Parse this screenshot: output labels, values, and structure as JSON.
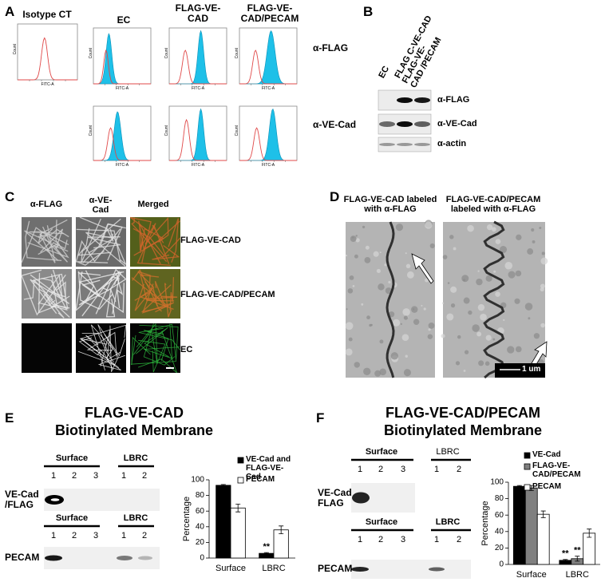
{
  "panel_a": {
    "letter": "A",
    "columns": [
      "Isotype CT",
      "EC",
      "FLAG-VE-CAD",
      "FLAG-VE-CAD/PECAM"
    ],
    "rows": [
      "α-FLAG",
      "α-VE-Cad"
    ],
    "y_axis": "Count",
    "x_axis": "FITC-A"
  },
  "panel_b": {
    "letter": "B",
    "lanes": [
      "EC",
      "FLAG C-VE-CAD",
      "FLAG-VE-CAD /PECAM"
    ],
    "rows": [
      "α-FLAG",
      "α-VE-Cad",
      "α-actin"
    ]
  },
  "panel_c": {
    "letter": "C",
    "columns": [
      "α-FLAG",
      "α-VE-Cad",
      "Merged"
    ],
    "rows": [
      "FLAG-VE-CAD",
      "FLAG-VE-CAD/PECAM",
      "EC"
    ]
  },
  "panel_d": {
    "letter": "D",
    "captions": [
      "FLAG-VE-CAD labeled with α-FLAG",
      "FLAG-VE-CAD/PECAM labeled with α-FLAG"
    ],
    "scale_bar": "1 um"
  },
  "panel_e": {
    "letter": "E",
    "title": "FLAG-VE-CAD",
    "subtitle": "Biotinylated Membrane",
    "groups": [
      "Surface",
      "LBRC"
    ],
    "lanes": [
      [
        "1",
        "2",
        "3"
      ],
      [
        "1",
        "2"
      ]
    ],
    "blots": [
      "VE-Cad /FLAG",
      "PECAM"
    ]
  },
  "panel_f": {
    "letter": "F",
    "title": "FLAG-VE-CAD/PECAM",
    "subtitle": "Biotinylated Membrane",
    "groups": [
      "Surface",
      "LBRC"
    ],
    "lanes": [
      [
        "1",
        "2",
        "3"
      ],
      [
        "1",
        "2"
      ]
    ],
    "blots": [
      "VE-Cad FLAG",
      "PECAM"
    ]
  },
  "chart_data": [
    {
      "type": "bar",
      "y_label": "Percentage",
      "categories": [
        "Surface",
        "LBRC"
      ],
      "series": [
        {
          "name": "VE-Cad and FLAG-VE-Cad",
          "color": "#000000",
          "values": [
            93,
            6
          ],
          "errors": [
            1,
            1
          ],
          "significance": [
            null,
            "**"
          ]
        },
        {
          "name": "PECAM",
          "color": "#ffffff",
          "values": [
            64,
            36
          ],
          "errors": [
            5,
            5
          ]
        }
      ],
      "ylim": [
        0,
        100
      ],
      "yticks": [
        0,
        20,
        40,
        60,
        80,
        100
      ]
    },
    {
      "type": "bar",
      "y_label": "Percentage",
      "categories": [
        "Surface",
        "LBRC"
      ],
      "series": [
        {
          "name": "VE-Cad",
          "color": "#000000",
          "values": [
            95,
            5
          ],
          "errors": [
            1,
            1
          ],
          "significance": [
            null,
            "**"
          ]
        },
        {
          "name": "FLAG-VE-CAD/PECAM",
          "color": "#808080",
          "values": [
            93,
            7
          ],
          "errors": [
            3,
            3
          ],
          "significance": [
            null,
            "**"
          ]
        },
        {
          "name": "PECAM",
          "color": "#ffffff",
          "values": [
            61,
            38
          ],
          "errors": [
            4,
            5
          ]
        }
      ],
      "ylim": [
        0,
        100
      ],
      "yticks": [
        0,
        20,
        40,
        60,
        80,
        100
      ]
    }
  ]
}
